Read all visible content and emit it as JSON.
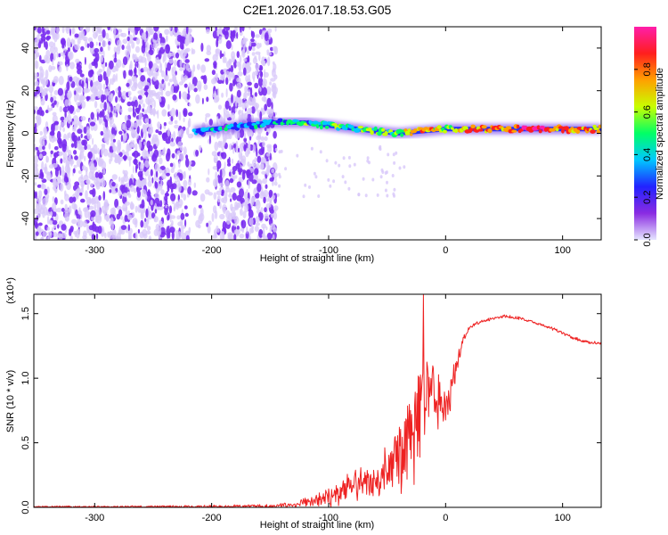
{
  "title": "C2E1.2026.017.18.53.G05",
  "colors": {
    "snr_line": "#ee2222",
    "background": "#ffffff",
    "axis": "#000000",
    "speckle": "#7a2ef0",
    "speckle_light": "#d8c8fa"
  },
  "chart_data": [
    {
      "type": "heatmap",
      "title": "",
      "xlabel": "Height of straight line (km)",
      "ylabel": "Frequency (Hz)",
      "xlim": [
        -352,
        133
      ],
      "ylim": [
        -50,
        50
      ],
      "xticks": [
        -300,
        -200,
        -100,
        0,
        100
      ],
      "xtick_labels": [
        "-300",
        "-200",
        "-100",
        "0",
        "100"
      ],
      "yticks": [
        -40,
        -20,
        0,
        20,
        40
      ],
      "ytick_labels": [
        "-40",
        "-20",
        "0",
        "20",
        "40"
      ],
      "ridge": {
        "description": "narrow high-amplitude band near 0 Hz",
        "x": [
          -215,
          -150,
          -120,
          -90,
          -60,
          -40,
          -20,
          0,
          20,
          50,
          80,
          100,
          133
        ],
        "freq_hz": [
          1,
          5,
          5,
          3,
          1,
          0,
          1,
          2,
          2,
          2,
          2,
          2,
          2
        ],
        "amplitude": [
          0.3,
          0.35,
          0.45,
          0.45,
          0.5,
          0.55,
          0.8,
          0.6,
          0.75,
          0.8,
          0.95,
          0.75,
          0.7
        ]
      },
      "colorbar": {
        "label": "Normalized spectral amplitude",
        "range": [
          0,
          1
        ],
        "ticks": [
          0.0,
          0.2,
          0.4,
          0.6,
          0.8
        ],
        "tick_labels": [
          "0.0",
          "0.2",
          "0.4",
          "0.6",
          "0.8"
        ],
        "stops": [
          "#e6e6ff",
          "#8a2be2",
          "#2222ff",
          "#00c8ff",
          "#00ff66",
          "#c8ff00",
          "#ffa000",
          "#ff1e1e",
          "#ff1eaa"
        ]
      }
    },
    {
      "type": "line",
      "title": "",
      "xlabel": "Height of straight line (km)",
      "ylabel": "SNR (10 * v/v)",
      "y_multiplier": "(x10⁴)",
      "xlim": [
        -352,
        133
      ],
      "ylim": [
        0,
        1.65
      ],
      "xticks": [
        -300,
        -200,
        -100,
        0,
        100
      ],
      "xtick_labels": [
        "-300",
        "-200",
        "-100",
        "0",
        "100"
      ],
      "yticks": [
        0,
        0.5,
        1.0,
        1.5
      ],
      "ytick_labels": [
        "0.0",
        "0.5",
        "1.0",
        "1.5"
      ],
      "series": [
        {
          "name": "SNR",
          "x": [
            -352,
            -300,
            -250,
            -200,
            -160,
            -150,
            -130,
            -110,
            -100,
            -90,
            -80,
            -70,
            -60,
            -50,
            -45,
            -40,
            -35,
            -30,
            -25,
            -20,
            -15,
            -10,
            -5,
            0,
            5,
            10,
            15,
            20,
            30,
            40,
            50,
            60,
            70,
            80,
            90,
            100,
            110,
            120,
            133
          ],
          "envelope": [
            0.01,
            0.01,
            0.012,
            0.015,
            0.02,
            0.02,
            0.04,
            0.1,
            0.15,
            0.22,
            0.3,
            0.32,
            0.36,
            0.45,
            0.55,
            0.62,
            0.72,
            0.82,
            0.95,
            1.12,
            1.2,
            1.15,
            1.0,
            0.95,
            1.05,
            1.2,
            1.32,
            1.4,
            1.45,
            1.47,
            1.49,
            1.48,
            1.46,
            1.43,
            1.4,
            1.36,
            1.32,
            1.29,
            1.28
          ],
          "noise": [
            0.01,
            0.01,
            0.012,
            0.02,
            0.02,
            0.02,
            0.04,
            0.08,
            0.12,
            0.18,
            0.2,
            0.22,
            0.25,
            0.3,
            0.4,
            0.45,
            0.5,
            0.55,
            0.6,
            0.55,
            0.45,
            0.4,
            0.35,
            0.3,
            0.25,
            0.12,
            0.05,
            0.02,
            0.02,
            0.02,
            0.02,
            0.02,
            0.02,
            0.02,
            0.02,
            0.02,
            0.02,
            0.02,
            0.02
          ],
          "peak": {
            "x": -19,
            "y": 1.65
          }
        }
      ]
    }
  ]
}
